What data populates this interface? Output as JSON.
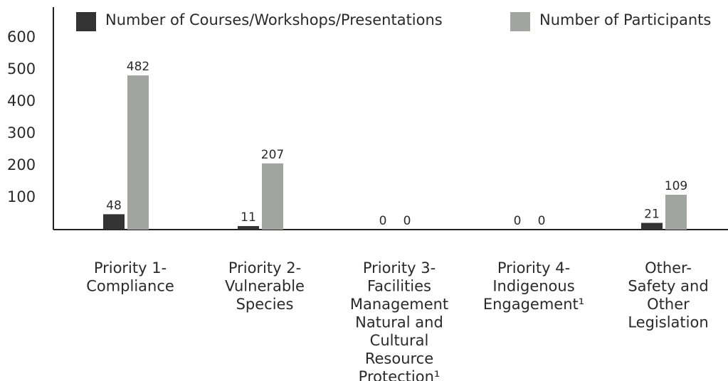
{
  "chart_data": {
    "type": "bar",
    "categories": [
      "Priority 1-\nCompliance",
      "Priority 2-\nVulnerable\nSpecies",
      "Priority 3-\nFacilities\nManagement\nNatural and\nCultural\nResource\nProtection¹",
      "Priority 4-\nIndigenous\nEngagement¹",
      "Other-\nSafety and\nOther\nLegislation"
    ],
    "series": [
      {
        "name": "Number of Courses/Workshops/Presentations",
        "color": "#333333",
        "values": [
          48,
          11,
          0,
          0,
          21
        ]
      },
      {
        "name": "Number of Participants",
        "color": "#a2a4a2",
        "values": [
          482,
          207,
          0,
          0,
          109
        ]
      }
    ],
    "ylim": [
      0,
      700
    ],
    "yticks": [
      100,
      200,
      300,
      400,
      500,
      600
    ],
    "grid": false,
    "legend": "top"
  }
}
